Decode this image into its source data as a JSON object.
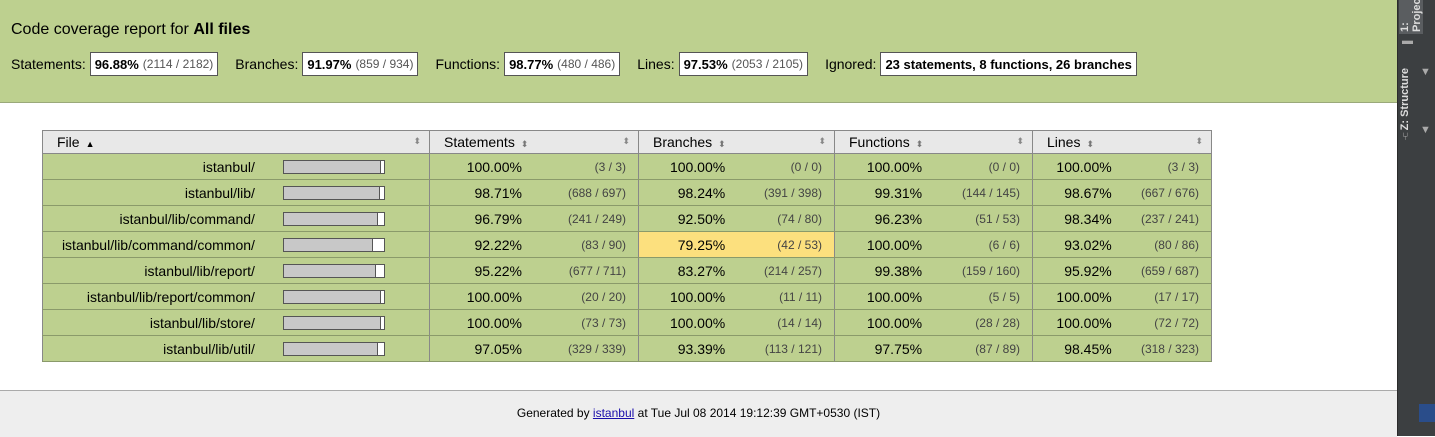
{
  "header": {
    "title_prefix": "Code coverage report for",
    "title_target": "All files",
    "summary": [
      {
        "label": "Statements:",
        "pct": "96.88%",
        "frac": "(2114 / 2182)"
      },
      {
        "label": "Branches:",
        "pct": "91.97%",
        "frac": "(859 / 934)"
      },
      {
        "label": "Functions:",
        "pct": "98.77%",
        "frac": "(480 / 486)"
      },
      {
        "label": "Lines:",
        "pct": "97.53%",
        "frac": "(2053 / 2105)"
      }
    ],
    "ignored_label": "Ignored:",
    "ignored_value": "23 statements, 8 functions, 26 branches"
  },
  "table": {
    "columns": {
      "file": "File",
      "statements": "Statements",
      "branches": "Branches",
      "functions": "Functions",
      "lines": "Lines"
    },
    "sort_active_icon": "sort-ascending-icon",
    "rows": [
      {
        "file": "istanbul/",
        "coverage_bar": 1.0,
        "statements": [
          "100.00%",
          "(3 / 3)"
        ],
        "branches": [
          "100.00%",
          "(0 / 0)"
        ],
        "functions": [
          "100.00%",
          "(0 / 0)"
        ],
        "lines": [
          "100.00%",
          "(3 / 3)"
        ]
      },
      {
        "file": "istanbul/lib/",
        "coverage_bar": 0.9871,
        "statements": [
          "98.71%",
          "(688 / 697)"
        ],
        "branches": [
          "98.24%",
          "(391 / 398)"
        ],
        "functions": [
          "99.31%",
          "(144 / 145)"
        ],
        "lines": [
          "98.67%",
          "(667 / 676)"
        ]
      },
      {
        "file": "istanbul/lib/command/",
        "coverage_bar": 0.9679,
        "statements": [
          "96.79%",
          "(241 / 249)"
        ],
        "branches": [
          "92.50%",
          "(74 / 80)"
        ],
        "functions": [
          "96.23%",
          "(51 / 53)"
        ],
        "lines": [
          "98.34%",
          "(237 / 241)"
        ]
      },
      {
        "file": "istanbul/lib/command/common/",
        "coverage_bar": 0.9222,
        "statements": [
          "92.22%",
          "(83 / 90)"
        ],
        "branches": [
          "79.25%",
          "(42 / 53)"
        ],
        "branches_low": true,
        "functions": [
          "100.00%",
          "(6 / 6)"
        ],
        "lines": [
          "93.02%",
          "(80 / 86)"
        ]
      },
      {
        "file": "istanbul/lib/report/",
        "coverage_bar": 0.9522,
        "statements": [
          "95.22%",
          "(677 / 711)"
        ],
        "branches": [
          "83.27%",
          "(214 / 257)"
        ],
        "functions": [
          "99.38%",
          "(159 / 160)"
        ],
        "lines": [
          "95.92%",
          "(659 / 687)"
        ]
      },
      {
        "file": "istanbul/lib/report/common/",
        "coverage_bar": 1.0,
        "statements": [
          "100.00%",
          "(20 / 20)"
        ],
        "branches": [
          "100.00%",
          "(11 / 11)"
        ],
        "functions": [
          "100.00%",
          "(5 / 5)"
        ],
        "lines": [
          "100.00%",
          "(17 / 17)"
        ]
      },
      {
        "file": "istanbul/lib/store/",
        "coverage_bar": 1.0,
        "statements": [
          "100.00%",
          "(73 / 73)"
        ],
        "branches": [
          "100.00%",
          "(14 / 14)"
        ],
        "functions": [
          "100.00%",
          "(28 / 28)"
        ],
        "lines": [
          "100.00%",
          "(72 / 72)"
        ]
      },
      {
        "file": "istanbul/lib/util/",
        "coverage_bar": 0.9705,
        "statements": [
          "97.05%",
          "(329 / 339)"
        ],
        "branches": [
          "93.39%",
          "(113 / 121)"
        ],
        "functions": [
          "97.75%",
          "(87 / 89)"
        ],
        "lines": [
          "98.45%",
          "(318 / 323)"
        ]
      }
    ]
  },
  "footer": {
    "prefix": "Generated by",
    "link": "istanbul",
    "suffix": "at Tue Jul 08 2014 19:12:39 GMT+0530 (IST)"
  },
  "ide": {
    "project_tab": "1: Project",
    "structure_tab": "Z: Structure"
  },
  "colors": {
    "header_bg": "#bdd08f",
    "high_coverage": "#bdd08f",
    "low_coverage": "#fce07e",
    "footer_bg": "#eeeeee",
    "ide_bg": "#3c3f41"
  }
}
